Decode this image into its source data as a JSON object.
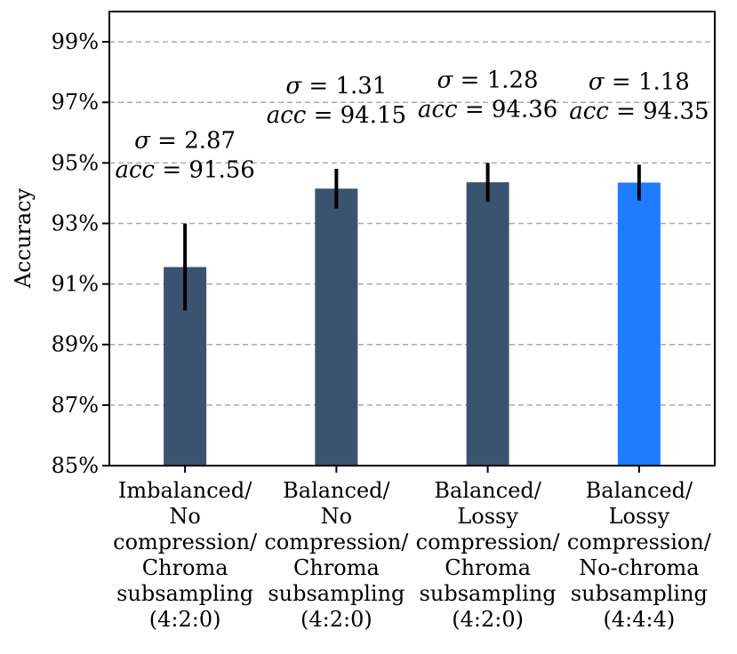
{
  "chart_data": {
    "type": "bar",
    "title": "",
    "xlabel": "",
    "ylabel": "Accuracy",
    "ylim": [
      85,
      100
    ],
    "yticks": [
      85,
      87,
      89,
      91,
      93,
      95,
      97,
      99
    ],
    "ytick_suffix": "%",
    "grid": "horizontal-dashed",
    "legend": "none",
    "categories": [
      [
        "Imbalanced/",
        "No",
        "compression/",
        "Chroma",
        "subsampling",
        "(4:2:0)"
      ],
      [
        "Balanced/",
        "No",
        "compression/",
        "Chroma",
        "subsampling",
        "(4:2:0)"
      ],
      [
        "Balanced/",
        "Lossy",
        "compression/",
        "Chroma",
        "subsampling",
        "(4:2:0)"
      ],
      [
        "Balanced/",
        "Lossy",
        "compression/",
        "No-chroma",
        "subsampling",
        "(4:4:4)"
      ]
    ],
    "values": [
      91.56,
      94.15,
      94.36,
      94.35
    ],
    "error": [
      2.87,
      1.31,
      1.28,
      1.18
    ],
    "annotations": [
      {
        "sigma_symbol": "σ",
        "sigma": "= 2.87",
        "acc_symbol": "acc",
        "acc": "= 91.56"
      },
      {
        "sigma_symbol": "σ",
        "sigma": "= 1.31",
        "acc_symbol": "acc",
        "acc": "= 94.15"
      },
      {
        "sigma_symbol": "σ",
        "sigma": "= 1.28",
        "acc_symbol": "acc",
        "acc": "= 94.36"
      },
      {
        "sigma_symbol": "σ",
        "sigma": "= 1.18",
        "acc_symbol": "acc",
        "acc": "= 94.35"
      }
    ],
    "colors": {
      "bars": [
        "#3a536e",
        "#3a536e",
        "#3a536e",
        "#1f7bff"
      ],
      "error_bar": "#000000",
      "grid": "#aaaaaa",
      "axis": "#000000"
    }
  }
}
